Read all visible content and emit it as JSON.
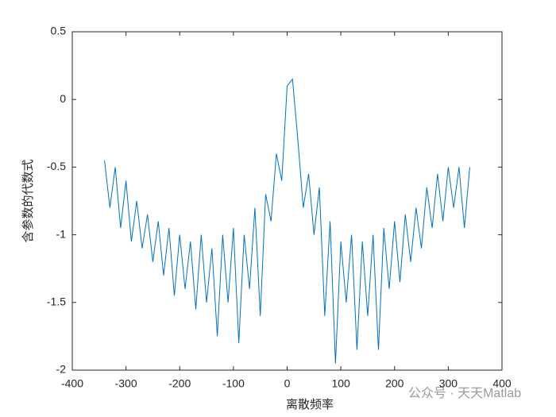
{
  "chart_data": {
    "type": "line",
    "xlabel": "离散频率",
    "ylabel": "含参数的代数式",
    "annotation": "公众号 · 天天Matlab",
    "x": [
      -340,
      -330,
      -320,
      -310,
      -300,
      -290,
      -280,
      -270,
      -260,
      -250,
      -240,
      -230,
      -220,
      -210,
      -200,
      -190,
      -180,
      -170,
      -160,
      -150,
      -140,
      -130,
      -120,
      -110,
      -100,
      -90,
      -80,
      -70,
      -60,
      -50,
      -40,
      -30,
      -20,
      -10,
      0,
      10,
      20,
      30,
      40,
      50,
      60,
      70,
      80,
      90,
      100,
      110,
      120,
      130,
      140,
      150,
      160,
      170,
      180,
      190,
      200,
      210,
      220,
      230,
      240,
      250,
      260,
      270,
      280,
      290,
      300,
      310,
      320,
      330,
      340
    ],
    "series": [
      {
        "color": "#0072bd",
        "values": [
          -0.45,
          -0.8,
          -0.5,
          -0.95,
          -0.6,
          -1.05,
          -0.75,
          -1.1,
          -0.85,
          -1.2,
          -0.9,
          -1.3,
          -0.95,
          -1.45,
          -1.0,
          -1.4,
          -1.05,
          -1.55,
          -1.0,
          -1.5,
          -1.1,
          -1.75,
          -1.0,
          -1.5,
          -0.95,
          -1.8,
          -1.0,
          -1.4,
          -0.8,
          -1.6,
          -0.7,
          -0.9,
          -0.4,
          -0.6,
          0.1,
          0.15,
          -0.3,
          -0.8,
          -0.55,
          -1.0,
          -0.65,
          -1.6,
          -0.9,
          -1.95,
          -1.05,
          -1.5,
          -1.0,
          -1.85,
          -1.05,
          -1.6,
          -1.0,
          -1.85,
          -0.95,
          -1.4,
          -0.9,
          -1.35,
          -0.85,
          -1.2,
          -0.8,
          -1.1,
          -0.65,
          -0.95,
          -0.55,
          -0.9,
          -0.5,
          -0.8,
          -0.5,
          -0.95,
          -0.5
        ]
      }
    ],
    "xlim": [
      -400,
      400
    ],
    "xticks": [
      -400,
      -300,
      -200,
      -100,
      0,
      100,
      200,
      300,
      400
    ],
    "ylim": [
      -2,
      0.5
    ],
    "yticks": [
      -2,
      -1.5,
      -1,
      -0.5,
      0,
      0.5
    ]
  }
}
